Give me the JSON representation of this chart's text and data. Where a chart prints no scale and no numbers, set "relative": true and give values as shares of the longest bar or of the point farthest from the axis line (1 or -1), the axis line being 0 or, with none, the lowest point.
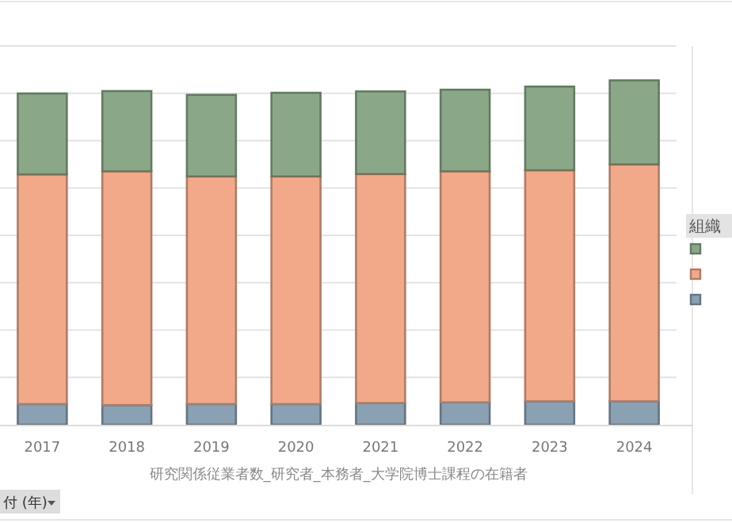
{
  "chart_data": {
    "type": "bar",
    "stacked": true,
    "relative": true,
    "grid": true,
    "legend_title": "組織",
    "xlabel": "研究関係従業者数_研究者_本務者_大学院博士課程の在籍者",
    "annotations": [
      "付 (年)"
    ],
    "categories": [
      "2017",
      "2018",
      "2019",
      "2020",
      "2021",
      "2022",
      "2023",
      "2024"
    ],
    "series": [
      {
        "color": "#8aa0b3",
        "values": [
          0.06,
          0.057,
          0.06,
          0.06,
          0.063,
          0.065,
          0.068,
          0.068
        ]
      },
      {
        "color": "#f2a98a",
        "values": [
          0.667,
          0.679,
          0.661,
          0.661,
          0.665,
          0.671,
          0.671,
          0.688
        ]
      },
      {
        "color": "#8aa888",
        "values": [
          0.235,
          0.233,
          0.237,
          0.243,
          0.24,
          0.237,
          0.243,
          0.244
        ]
      }
    ]
  }
}
